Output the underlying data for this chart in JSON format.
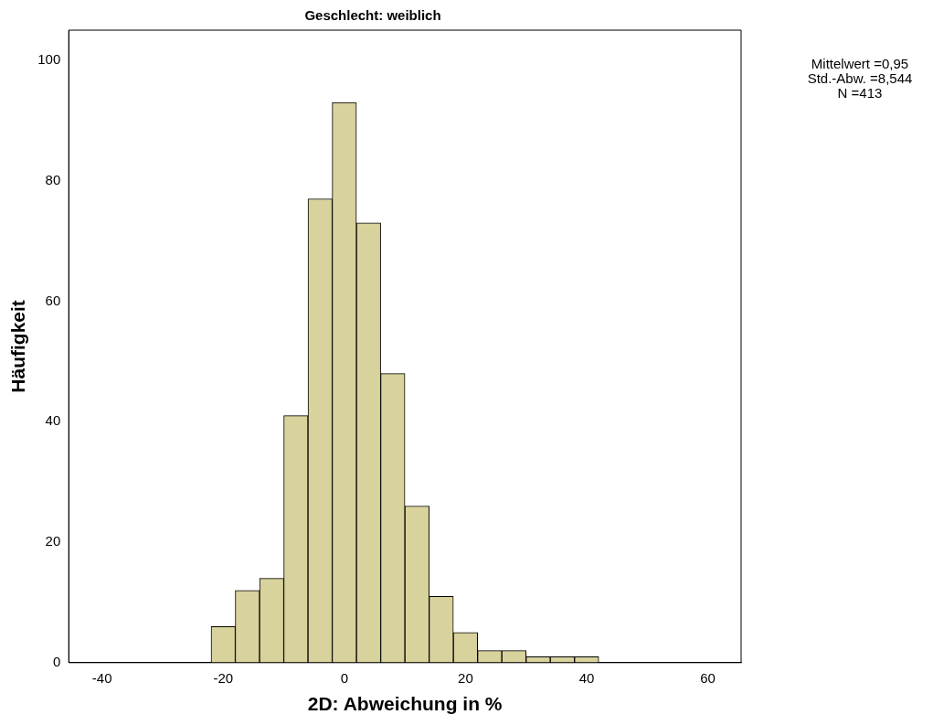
{
  "chart_data": {
    "type": "histogram",
    "title": "Geschlecht: weiblich",
    "xlabel": "2D: Abweichung in %",
    "ylabel": "Häufigkeit",
    "bins": [
      -22,
      -18,
      -14,
      -10,
      -6,
      -2,
      2,
      6,
      10,
      14,
      18,
      22,
      26,
      30,
      34,
      38,
      42
    ],
    "values": [
      6,
      12,
      14,
      41,
      77,
      93,
      73,
      48,
      26,
      11,
      5,
      2,
      2,
      1,
      1,
      1
    ],
    "color": "#d8d29c",
    "xlim": [
      -45.5,
      65.5
    ],
    "xticks": [
      -40,
      -20,
      0,
      20,
      40,
      60
    ],
    "ylim": [
      0,
      105
    ],
    "yticks": [
      0,
      20,
      40,
      60,
      80,
      100
    ],
    "grid": false,
    "legend": false,
    "annotations": [
      "Mittelwert =0,95",
      "Std.-Abw. =8,544",
      "N =413"
    ]
  }
}
